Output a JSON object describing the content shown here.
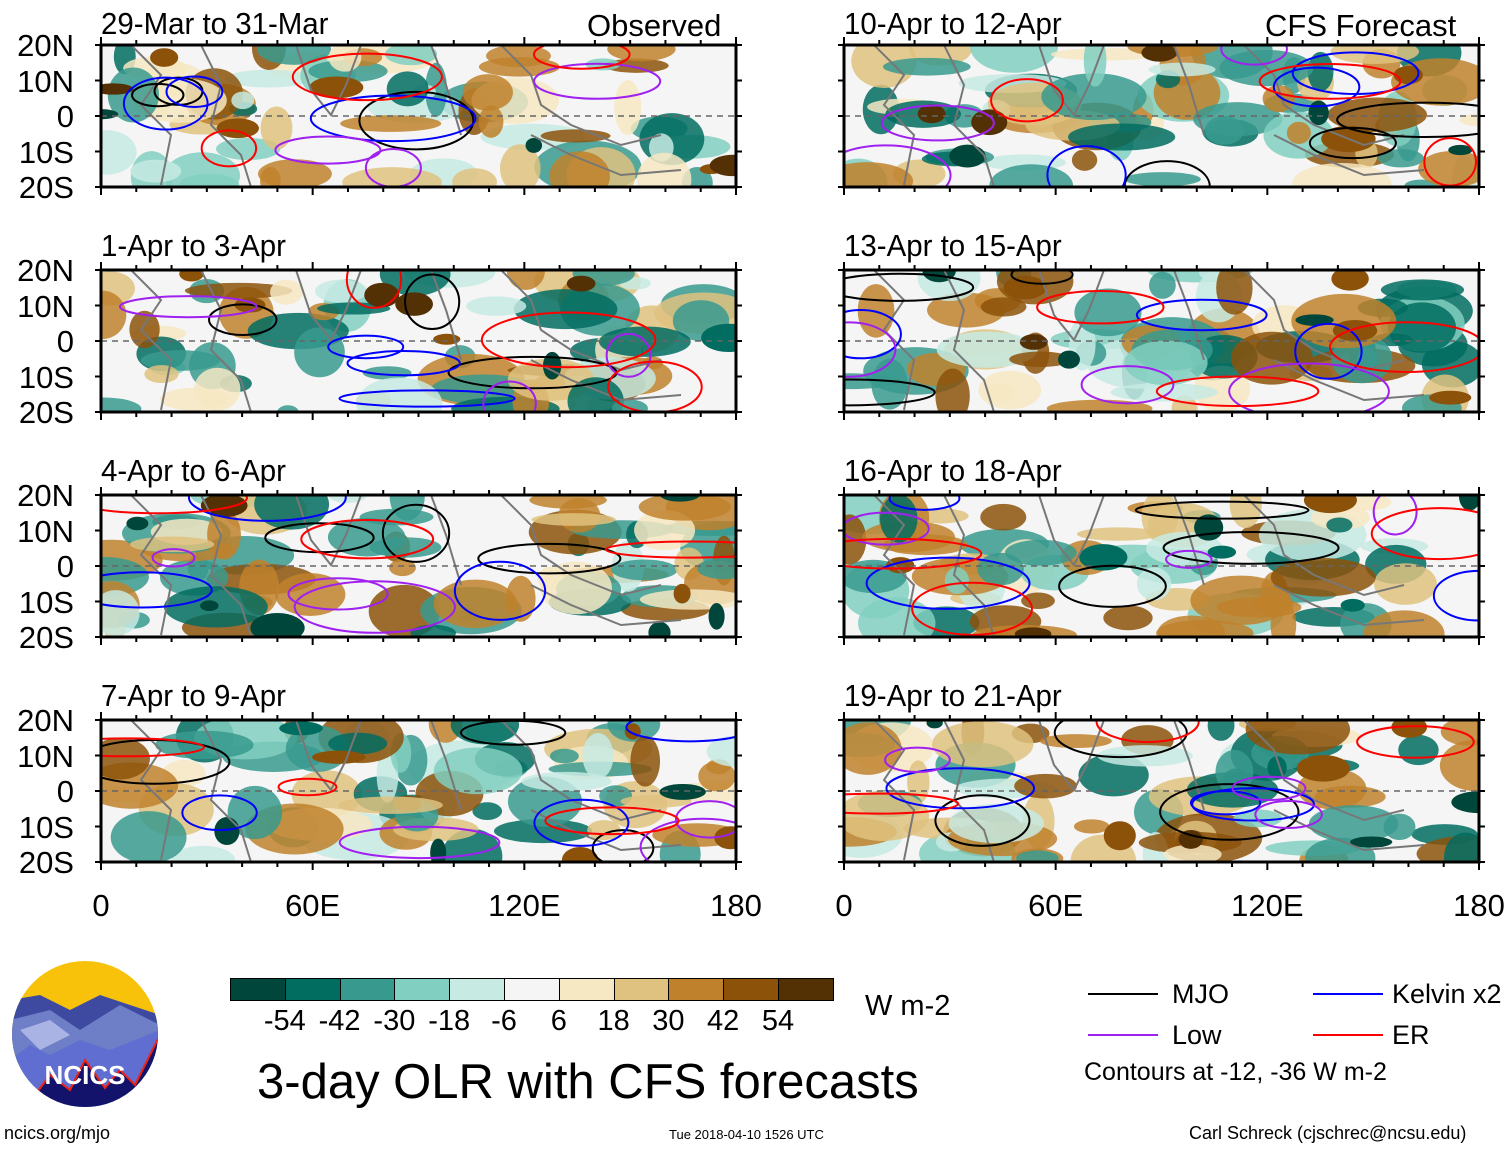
{
  "left_header_label": "Observed",
  "right_header_label": "CFS Forecast",
  "panels_left": [
    "29-Mar to 31-Mar",
    "1-Apr to 3-Apr",
    "4-Apr to 6-Apr",
    "7-Apr to 9-Apr"
  ],
  "panels_right": [
    "10-Apr to 12-Apr",
    "13-Apr to 15-Apr",
    "16-Apr to 18-Apr",
    "19-Apr to 21-Apr"
  ],
  "lat_ticks": [
    "20N",
    "10N",
    "0",
    "10S",
    "20S"
  ],
  "lon_ticks": [
    "0",
    "60E",
    "120E",
    "180"
  ],
  "colorbar": {
    "colors": [
      "#00463a",
      "#016c60",
      "#389a8e",
      "#81cfc0",
      "#c7eae3",
      "#f5f5f5",
      "#f6e8c2",
      "#dfc27f",
      "#bf812c",
      "#8c520a",
      "#543005"
    ],
    "labels": [
      "-54",
      "-42",
      "-30",
      "-18",
      "-6",
      "6",
      "18",
      "30",
      "42",
      "54"
    ],
    "units": "W m-2"
  },
  "title": "3-day OLR with CFS forecasts",
  "legend": {
    "items": [
      {
        "label": "MJO",
        "color": "#000000"
      },
      {
        "label": "Kelvin x2",
        "color": "#0000ff"
      },
      {
        "label": "Low",
        "color": "#a020f0"
      },
      {
        "label": "ER",
        "color": "#ff0000"
      }
    ],
    "note": "Contours at -12, -36 W m-2"
  },
  "logo_text": "NCICS",
  "footer": {
    "url": "ncics.org/mjo",
    "timestamp": "Tue 2018-04-10 1526 UTC",
    "author": "Carl Schreck (cjschrec@ncsu.edu)"
  }
}
